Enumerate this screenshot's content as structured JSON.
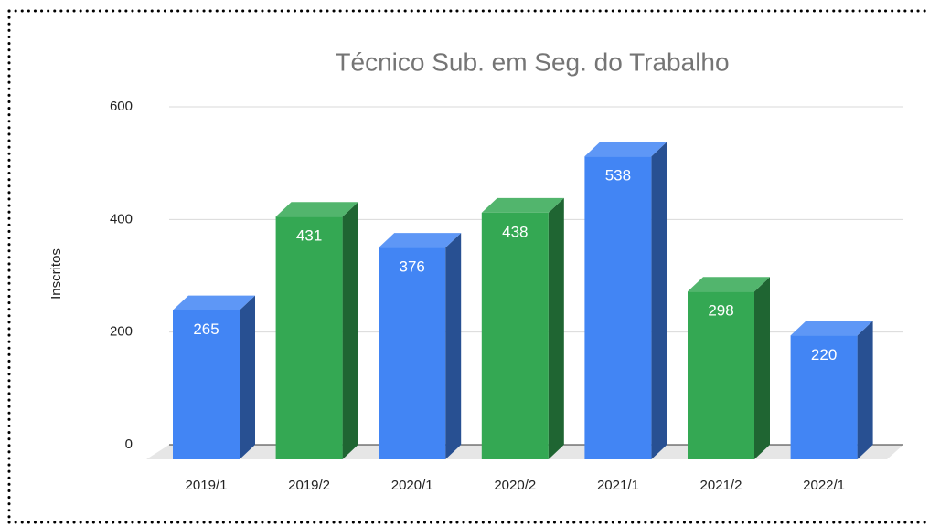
{
  "chart_data": {
    "type": "bar",
    "title": "Técnico Sub. em Seg. do Trabalho",
    "y_label": "Inscritos",
    "categories": [
      "2019/1",
      "2019/2",
      "2020/1",
      "2020/2",
      "2021/1",
      "2021/2",
      "2022/1"
    ],
    "values": [
      265,
      431,
      376,
      438,
      538,
      298,
      220
    ],
    "colors": [
      "#4285f4",
      "#34a853",
      "#4285f4",
      "#34a853",
      "#4285f4",
      "#34a853",
      "#4285f4"
    ],
    "ylim": [
      0,
      600
    ],
    "yticks": [
      0,
      200,
      400,
      600
    ],
    "grid": true
  }
}
